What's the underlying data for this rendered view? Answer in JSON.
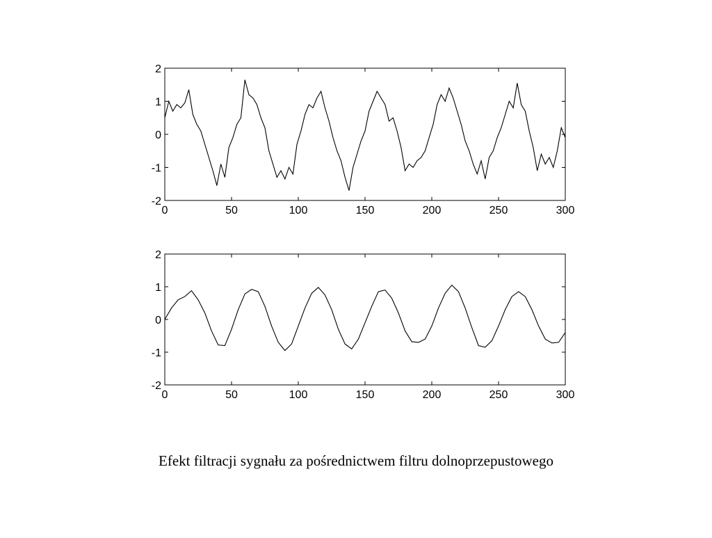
{
  "caption": "Efekt filtracji sygnału za pośrednictwem filtru dolnoprzepustowego",
  "chart_data": [
    {
      "type": "line",
      "x": [
        0,
        3,
        6,
        9,
        12,
        15,
        18,
        21,
        24,
        27,
        30,
        33,
        36,
        39,
        42,
        45,
        48,
        51,
        54,
        57,
        60,
        63,
        66,
        69,
        72,
        75,
        78,
        81,
        84,
        87,
        90,
        93,
        96,
        99,
        102,
        105,
        108,
        111,
        114,
        117,
        120,
        123,
        126,
        129,
        132,
        135,
        138,
        141,
        144,
        147,
        150,
        153,
        156,
        159,
        162,
        165,
        168,
        171,
        174,
        177,
        180,
        183,
        186,
        189,
        192,
        195,
        198,
        201,
        204,
        207,
        210,
        213,
        216,
        219,
        222,
        225,
        228,
        231,
        234,
        237,
        240,
        243,
        246,
        249,
        252,
        255,
        258,
        261,
        264,
        267,
        270,
        273,
        276,
        279,
        282,
        285,
        288,
        291,
        294,
        297,
        300
      ],
      "series": [
        {
          "color": "#000000",
          "values": [
            0.5,
            1.0,
            0.7,
            0.9,
            0.8,
            0.95,
            1.35,
            0.6,
            0.3,
            0.1,
            -0.3,
            -0.7,
            -1.1,
            -1.55,
            -0.9,
            -1.3,
            -0.4,
            -0.1,
            0.3,
            0.5,
            1.65,
            1.2,
            1.1,
            0.9,
            0.5,
            0.2,
            -0.5,
            -0.9,
            -1.3,
            -1.1,
            -1.35,
            -1.0,
            -1.2,
            -0.3,
            0.1,
            0.6,
            0.9,
            0.8,
            1.1,
            1.3,
            0.8,
            0.4,
            -0.1,
            -0.5,
            -0.8,
            -1.3,
            -1.7,
            -1.0,
            -0.6,
            -0.2,
            0.1,
            0.7,
            1.0,
            1.3,
            1.1,
            0.9,
            0.4,
            0.5,
            0.1,
            -0.4,
            -1.1,
            -0.9,
            -1.0,
            -0.8,
            -0.7,
            -0.5,
            -0.1,
            0.3,
            0.9,
            1.2,
            1.0,
            1.4,
            1.1,
            0.7,
            0.3,
            -0.2,
            -0.5,
            -0.9,
            -1.2,
            -0.8,
            -1.35,
            -0.7,
            -0.5,
            -0.1,
            0.2,
            0.6,
            1.0,
            0.8,
            1.55,
            0.9,
            0.7,
            0.1,
            -0.4,
            -1.1,
            -0.6,
            -0.9,
            -0.7,
            -1.0,
            -0.5,
            0.2,
            -0.1
          ]
        }
      ],
      "xlim": [
        0,
        300
      ],
      "ylim": [
        -2,
        2
      ],
      "xticks": [
        0,
        50,
        100,
        150,
        200,
        250,
        300
      ],
      "yticks": [
        -2,
        -1,
        0,
        1,
        2
      ]
    },
    {
      "type": "line",
      "x": [
        0,
        5,
        10,
        15,
        20,
        25,
        30,
        35,
        40,
        45,
        50,
        55,
        60,
        65,
        70,
        75,
        80,
        85,
        90,
        95,
        100,
        105,
        110,
        115,
        120,
        125,
        130,
        135,
        140,
        145,
        150,
        155,
        160,
        165,
        170,
        175,
        180,
        185,
        190,
        195,
        200,
        205,
        210,
        215,
        220,
        225,
        230,
        235,
        240,
        245,
        250,
        255,
        260,
        265,
        270,
        275,
        280,
        285,
        290,
        295,
        300
      ],
      "series": [
        {
          "color": "#000000",
          "values": [
            0.0,
            0.35,
            0.6,
            0.7,
            0.88,
            0.6,
            0.2,
            -0.35,
            -0.78,
            -0.8,
            -0.3,
            0.3,
            0.78,
            0.92,
            0.85,
            0.4,
            -0.2,
            -0.7,
            -0.95,
            -0.75,
            -0.2,
            0.35,
            0.8,
            0.98,
            0.75,
            0.3,
            -0.3,
            -0.75,
            -0.9,
            -0.6,
            -0.1,
            0.4,
            0.85,
            0.9,
            0.65,
            0.2,
            -0.35,
            -0.68,
            -0.7,
            -0.6,
            -0.2,
            0.35,
            0.8,
            1.05,
            0.85,
            0.35,
            -0.25,
            -0.8,
            -0.85,
            -0.65,
            -0.2,
            0.3,
            0.7,
            0.85,
            0.7,
            0.3,
            -0.2,
            -0.6,
            -0.72,
            -0.7,
            -0.4
          ]
        }
      ],
      "xlim": [
        0,
        300
      ],
      "ylim": [
        -2,
        2
      ],
      "xticks": [
        0,
        50,
        100,
        150,
        200,
        250,
        300
      ],
      "yticks": [
        -2,
        -1,
        0,
        1,
        2
      ]
    }
  ]
}
